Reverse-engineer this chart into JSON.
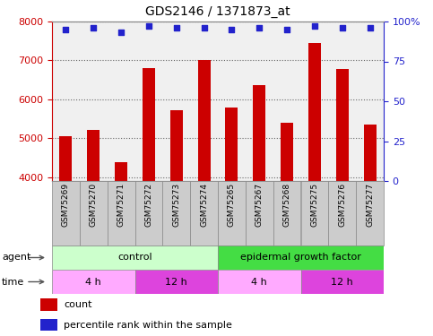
{
  "title": "GDS2146 / 1371873_at",
  "samples": [
    "GSM75269",
    "GSM75270",
    "GSM75271",
    "GSM75272",
    "GSM75273",
    "GSM75274",
    "GSM75265",
    "GSM75267",
    "GSM75268",
    "GSM75275",
    "GSM75276",
    "GSM75277"
  ],
  "counts": [
    5050,
    5220,
    4380,
    6800,
    5730,
    7010,
    5790,
    6360,
    5400,
    7450,
    6780,
    5360
  ],
  "percentile_ranks": [
    95,
    96,
    93,
    97,
    96,
    96,
    95,
    96,
    95,
    97,
    96,
    96
  ],
  "ylim_left": [
    3900,
    8000
  ],
  "ylim_right": [
    0,
    100
  ],
  "yticks_left": [
    4000,
    5000,
    6000,
    7000,
    8000
  ],
  "yticks_right": [
    0,
    25,
    50,
    75,
    100
  ],
  "bar_color": "#cc0000",
  "dot_color": "#2222cc",
  "bar_baseline": 3900,
  "agent_row": [
    {
      "label": "control",
      "start": 0,
      "end": 6,
      "color": "#ccffcc"
    },
    {
      "label": "epidermal growth factor",
      "start": 6,
      "end": 12,
      "color": "#44dd44"
    }
  ],
  "time_row": [
    {
      "label": "4 h",
      "start": 0,
      "end": 3,
      "color": "#ffaaff"
    },
    {
      "label": "12 h",
      "start": 3,
      "end": 6,
      "color": "#dd44dd"
    },
    {
      "label": "4 h",
      "start": 6,
      "end": 9,
      "color": "#ffaaff"
    },
    {
      "label": "12 h",
      "start": 9,
      "end": 12,
      "color": "#dd44dd"
    }
  ],
  "left_axis_color": "#cc0000",
  "right_axis_color": "#2222cc",
  "grid_color": "#666666",
  "background_color": "#ffffff",
  "plot_bg_color": "#f0f0f0",
  "sample_box_color": "#cccccc",
  "sample_box_edge": "#888888"
}
